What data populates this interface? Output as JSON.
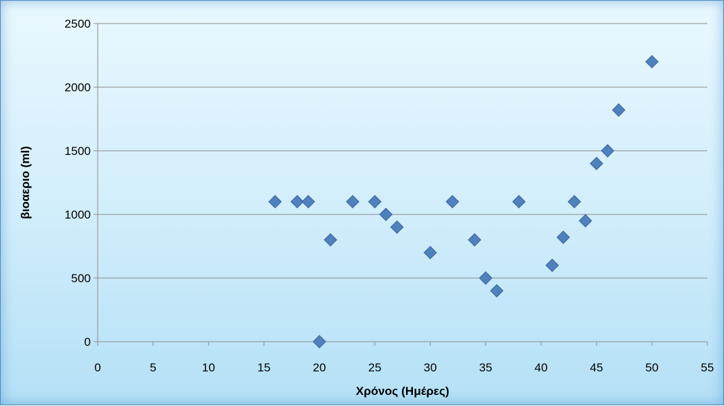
{
  "chart_data": {
    "type": "scatter",
    "title": "",
    "xlabel": "Χρόνος (Ημέρες)",
    "ylabel": "βιοαεριο (ml)",
    "xlim": [
      0,
      55
    ],
    "ylim": [
      0,
      2500
    ],
    "x_ticks": [
      0,
      5,
      10,
      15,
      20,
      25,
      30,
      35,
      40,
      45,
      50,
      55
    ],
    "y_ticks": [
      0,
      500,
      1000,
      1500,
      2000,
      2500
    ],
    "grid": "horizontal",
    "legend": "none",
    "marker": "diamond",
    "series": [
      {
        "color": "#4f81bd",
        "points": [
          {
            "x": 16,
            "y": 1100
          },
          {
            "x": 18,
            "y": 1100
          },
          {
            "x": 19,
            "y": 1100
          },
          {
            "x": 20,
            "y": 0
          },
          {
            "x": 21,
            "y": 800
          },
          {
            "x": 23,
            "y": 1100
          },
          {
            "x": 25,
            "y": 1100
          },
          {
            "x": 26,
            "y": 1000
          },
          {
            "x": 27,
            "y": 900
          },
          {
            "x": 30,
            "y": 700
          },
          {
            "x": 32,
            "y": 1100
          },
          {
            "x": 34,
            "y": 800
          },
          {
            "x": 35,
            "y": 500
          },
          {
            "x": 36,
            "y": 400
          },
          {
            "x": 38,
            "y": 1100
          },
          {
            "x": 41,
            "y": 600
          },
          {
            "x": 42,
            "y": 820
          },
          {
            "x": 43,
            "y": 1100
          },
          {
            "x": 44,
            "y": 950
          },
          {
            "x": 45,
            "y": 1400
          },
          {
            "x": 46,
            "y": 1500
          },
          {
            "x": 47,
            "y": 1820
          },
          {
            "x": 50,
            "y": 2200
          }
        ]
      }
    ]
  },
  "colors": {
    "gridline": "#8c8c8c",
    "axis": "#8c8c8c",
    "marker_fill": "#4f81bd",
    "marker_stroke": "#3a659a"
  }
}
